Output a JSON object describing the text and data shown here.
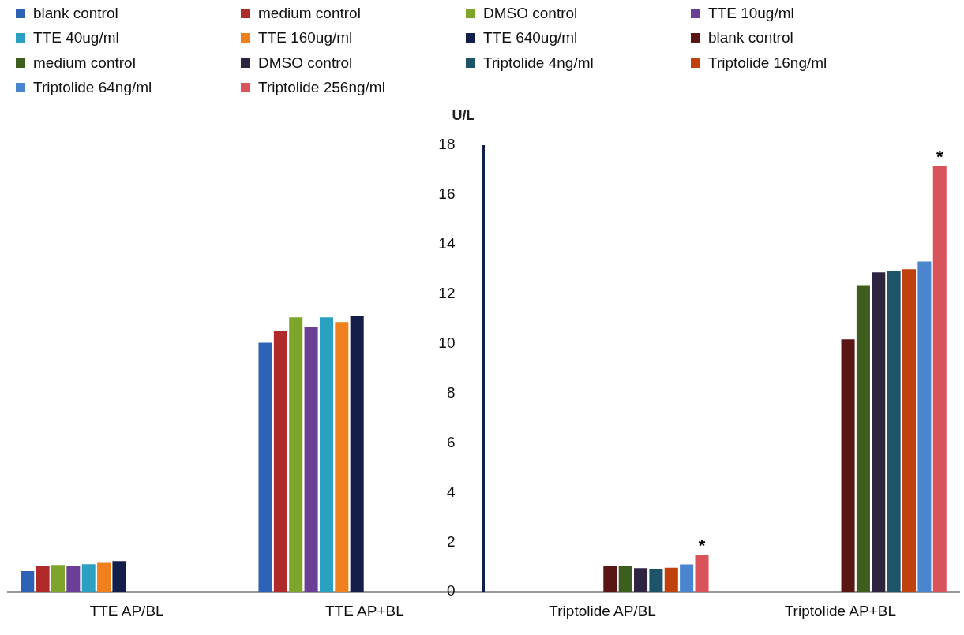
{
  "chart_data": {
    "type": "bar",
    "ylabel": "U/L",
    "categories": [
      "TTE AP/BL",
      "TTE AP+BL",
      "Triptolide AP/BL",
      "Triptolide AP+BL"
    ],
    "series": [
      {
        "name": "blank control",
        "color": "#2e62b5",
        "values": [
          0.83,
          10.04,
          null,
          null
        ]
      },
      {
        "name": "medium control",
        "color": "#b02a2a",
        "values": [
          1.02,
          10.5,
          null,
          null
        ]
      },
      {
        "name": "DMSO control",
        "color": "#7ea52a",
        "values": [
          1.08,
          11.06,
          null,
          null
        ]
      },
      {
        "name": "TTE 10ug/ml",
        "color": "#6b3f96",
        "values": [
          1.05,
          10.68,
          null,
          null
        ]
      },
      {
        "name": "TTE 40ug/ml",
        "color": "#2ca0c0",
        "values": [
          1.11,
          11.06,
          null,
          null
        ]
      },
      {
        "name": "TTE 160ug/ml",
        "color": "#f07f1e",
        "values": [
          1.17,
          10.87,
          null,
          null
        ]
      },
      {
        "name": "TTE 640ug/ml",
        "color": "#141e4a",
        "values": [
          1.24,
          11.12,
          null,
          null
        ]
      },
      {
        "name": "blank control",
        "color": "#5a1515",
        "values": [
          null,
          null,
          1.02,
          10.17
        ]
      },
      {
        "name": "medium control",
        "color": "#3d5e1c",
        "values": [
          null,
          null,
          1.05,
          12.36
        ]
      },
      {
        "name": "DMSO control",
        "color": "#2e2440",
        "values": [
          null,
          null,
          0.95,
          12.87
        ]
      },
      {
        "name": "Triptolide 4ng/ml",
        "color": "#1d5468",
        "values": [
          null,
          null,
          0.93,
          12.93
        ]
      },
      {
        "name": "Triptolide 16ng/ml",
        "color": "#c0400e",
        "values": [
          null,
          null,
          0.97,
          13.0
        ]
      },
      {
        "name": "Triptolide 64ng/ml",
        "color": "#4a86cf",
        "values": [
          null,
          null,
          1.1,
          13.31
        ]
      },
      {
        "name": "Triptolide 256ng/ml",
        "color": "#d9545a",
        "values": [
          null,
          null,
          1.5,
          17.17
        ]
      }
    ],
    "ylim": [
      0,
      18
    ],
    "yticks": [
      0,
      2,
      4,
      6,
      8,
      10,
      12,
      14,
      16,
      18
    ],
    "grid": false,
    "legend": "top",
    "annotations": [
      "*",
      "*"
    ]
  }
}
